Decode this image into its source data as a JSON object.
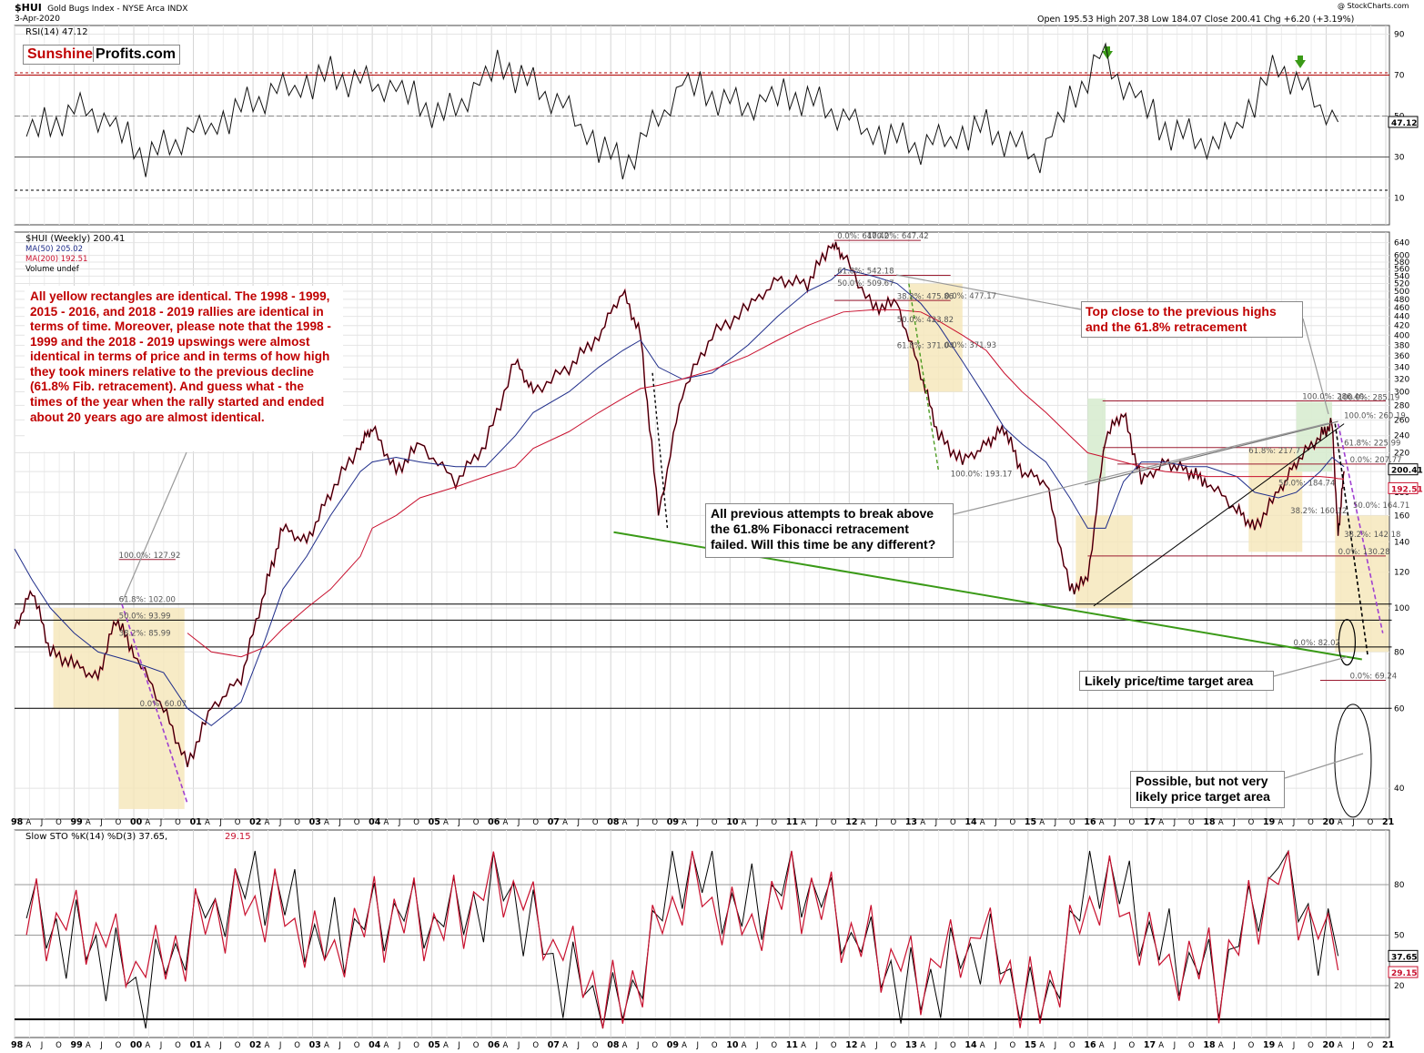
{
  "header": {
    "symbol": "$HUI",
    "name": "Gold Bugs Index - NYSE Arca INDX",
    "date": "3-Apr-2020",
    "ohlc": "Open 195.53  High 207.38  Low 184.07  Close 200.41  Chg +6.20 (+3.19%)",
    "watermark": "@ StockCharts.com"
  },
  "logo": {
    "part1": "Sunshine",
    "part2": "Profits.com"
  },
  "colors": {
    "accent_red": "#c00000",
    "ma50": "#1f2d8a",
    "ma200": "#c8102e",
    "up": "#000000",
    "down": "#c8102e",
    "yellow_box": "#f5e6b8",
    "green_box": "#d8ecd0",
    "trend_green": "#3a9a17"
  },
  "rsi_panel": {
    "label": "RSI(14) 47.12",
    "value_tag": "47.12",
    "ticks": [
      "90",
      "70",
      "50",
      "30",
      "10"
    ],
    "levels": [
      10,
      30,
      50,
      70,
      90
    ]
  },
  "price_panel": {
    "legend": [
      "$HUI (Weekly) 200.41",
      "MA(50) 205.02",
      "MA(200) 192.51",
      "Volume undef"
    ],
    "ticks": [
      "640",
      "600",
      "580",
      "560",
      "540",
      "520",
      "500",
      "480",
      "460",
      "440",
      "420",
      "400",
      "380",
      "360",
      "340",
      "320",
      "300",
      "280",
      "260",
      "240",
      "220",
      "200",
      "180",
      "160",
      "140",
      "120",
      "100",
      "80",
      "60",
      "40"
    ],
    "last_tags": [
      "200.41",
      "192.51"
    ]
  },
  "sto_panel": {
    "label": "Slow STO %K(14) %D(3) 37.65, 29.15",
    "label_part1": "Slow STO %K(14) %D(3) 37.65,",
    "label_part2": "29.15",
    "ticks": [
      "80",
      "50",
      "20"
    ],
    "tags": [
      "37.65",
      "29.15"
    ]
  },
  "x_axis": [
    "98",
    "A",
    "J",
    "O",
    "99",
    "A",
    "J",
    "O",
    "00",
    "A",
    "J",
    "O",
    "01",
    "A",
    "J",
    "O",
    "02",
    "A",
    "J",
    "O",
    "03",
    "A",
    "J",
    "O",
    "04",
    "A",
    "J",
    "O",
    "05",
    "A",
    "J",
    "O",
    "06",
    "A",
    "J",
    "O",
    "07",
    "A",
    "J",
    "O",
    "08",
    "A",
    "J",
    "O",
    "09",
    "A",
    "J",
    "O",
    "10",
    "A",
    "J",
    "O",
    "11",
    "A",
    "J",
    "O",
    "12",
    "A",
    "J",
    "O",
    "13",
    "A",
    "J",
    "O",
    "14",
    "A",
    "J",
    "O",
    "15",
    "A",
    "J",
    "O",
    "16",
    "A",
    "J",
    "O",
    "17",
    "A",
    "J",
    "O",
    "18",
    "A",
    "J",
    "O",
    "19",
    "A",
    "J",
    "O",
    "20",
    "A",
    "J",
    "O",
    "21"
  ],
  "fib_labels": [
    "100.0%: 127.92",
    "61.8%: 102.00",
    "50.0%: 93.99",
    "38.2%: 85.99",
    "0.0%: 60.07",
    "0.0%: 647.42",
    "100.0%: 647.42",
    "61.8%: 542.18",
    "50.0%: 509.67",
    "38.2%: 475.86",
    "0.0%: 477.17",
    "50.0%: 423.82",
    "61.8%: 371.04",
    "0.0%: 371.93",
    "100.0%: 193.17",
    "100.0%: 286.40",
    "100.0%: 285.19",
    "100.0%: 260.19",
    "61.8%: 225.99",
    "0.0%: 207.77",
    "61.8%: 217.7",
    "50.0%: 184.74",
    "50.0%: 164.71",
    "38.2%: 160.12",
    "38.2%: 142.18",
    "0.0%: 130.28",
    "0.0%: 82.02",
    "0.0%: 69.24"
  ],
  "annotations": {
    "main_note": "All yellow rectangles are identical. The 1998 - 1999, 2015 - 2016, and 2018 - 2019 rallies are identical in terms of time. Moreover, please note that the 1998 - 1999 and the 2018 - 2019 upswings were almost identical in terms of price and in terms of how high they took miners relative to the previous decline (61.8% Fib. retracement). And guess what - the times of the year when the rally started and ended about 20 years ago are almost identical.",
    "top_close": "Top close to the previous highs and the 61.8% retracement",
    "fib_attempts": "All previous attempts to break above the 61.8% Fibonacci retracement failed. Will this time be any different?",
    "likely_target": "Likely price/time target area",
    "possible_target": "Possible, but not very likely price target area"
  },
  "chart_data": [
    {
      "type": "line",
      "title": "RSI(14) 47.12",
      "ylim": [
        10,
        90
      ],
      "x": [
        "1998",
        "1999",
        "2000",
        "2001",
        "2002",
        "2003",
        "2004",
        "2005",
        "2006",
        "2007",
        "2008",
        "2009",
        "2010",
        "2011",
        "2012",
        "2013",
        "2014",
        "2015",
        "2016",
        "2017",
        "2018",
        "2019",
        "2020"
      ],
      "series": [
        {
          "name": "RSI(14)",
          "values": [
            40,
            55,
            30,
            45,
            60,
            70,
            65,
            50,
            75,
            55,
            25,
            65,
            55,
            60,
            45,
            35,
            45,
            30,
            80,
            45,
            35,
            75,
            47.12
          ]
        }
      ]
    },
    {
      "type": "line",
      "title": "$HUI Gold Bugs Index (Weekly)",
      "ylim": [
        35,
        660
      ],
      "log_scale": true,
      "x": [
        "1998.0",
        "1998.3",
        "1998.6",
        "1999.0",
        "1999.4",
        "1999.7",
        "2000.0",
        "2000.5",
        "2000.9",
        "2001.3",
        "2001.8",
        "2002.2",
        "2002.5",
        "2002.9",
        "2003.3",
        "2003.8",
        "2004.0",
        "2004.4",
        "2004.8",
        "2005.4",
        "2005.9",
        "2006.4",
        "2006.7",
        "2007.3",
        "2007.8",
        "2008.2",
        "2008.5",
        "2008.8",
        "2009.2",
        "2009.7",
        "2010.3",
        "2010.8",
        "2011.3",
        "2011.7",
        "2011.9",
        "2012.4",
        "2012.8",
        "2013.2",
        "2013.5",
        "2013.9",
        "2014.3",
        "2014.6",
        "2014.9",
        "2015.3",
        "2015.7",
        "2016.0",
        "2016.3",
        "2016.6",
        "2016.9",
        "2017.3",
        "2017.7",
        "2018.0",
        "2018.5",
        "2018.8",
        "2019.2",
        "2019.5",
        "2019.9",
        "2020.1",
        "2020.2",
        "2020.3"
      ],
      "series": [
        {
          "name": "$HUI (Weekly) 200.41",
          "values": [
            90,
            110,
            80,
            75,
            70,
            95,
            80,
            60,
            45,
            60,
            70,
            110,
            150,
            140,
            180,
            230,
            250,
            200,
            230,
            190,
            230,
            350,
            300,
            340,
            400,
            500,
            400,
            160,
            300,
            400,
            460,
            530,
            520,
            640,
            600,
            460,
            470,
            330,
            240,
            210,
            230,
            250,
            200,
            190,
            110,
            115,
            240,
            270,
            190,
            210,
            200,
            190,
            165,
            150,
            180,
            210,
            240,
            255,
            145,
            200.41
          ]
        },
        {
          "name": "MA(50) 205.02",
          "values": [
            135,
            115,
            100,
            88,
            80,
            78,
            76,
            72,
            60,
            55,
            62,
            85,
            110,
            130,
            160,
            200,
            210,
            215,
            210,
            205,
            205,
            240,
            270,
            300,
            340,
            370,
            390,
            340,
            320,
            330,
            380,
            440,
            500,
            530,
            560,
            540,
            520,
            470,
            420,
            350,
            290,
            250,
            230,
            210,
            175,
            150,
            150,
            190,
            210,
            210,
            205,
            205,
            195,
            180,
            175,
            180,
            200,
            215,
            210,
            205.02
          ]
        },
        {
          "name": "MA(200) 192.51",
          "values": [
            null,
            null,
            null,
            null,
            null,
            null,
            null,
            null,
            88,
            80,
            78,
            82,
            90,
            100,
            110,
            130,
            150,
            160,
            175,
            185,
            195,
            205,
            225,
            245,
            270,
            290,
            305,
            310,
            320,
            335,
            360,
            390,
            420,
            440,
            450,
            455,
            455,
            450,
            430,
            400,
            370,
            330,
            300,
            270,
            240,
            220,
            215,
            210,
            205,
            200,
            198,
            195,
            195,
            195,
            195,
            195,
            195,
            194,
            193,
            192.51
          ]
        }
      ]
    },
    {
      "type": "line",
      "title": "Slow STO %K(14) %D(3) 37.65, 29.15",
      "ylim": [
        0,
        100
      ],
      "x": [
        "1998",
        "1999",
        "2000",
        "2001",
        "2002",
        "2003",
        "2004",
        "2005",
        "2006",
        "2007",
        "2008",
        "2009",
        "2010",
        "2011",
        "2012",
        "2013",
        "2014",
        "2015",
        "2016",
        "2017",
        "2018",
        "2019",
        "2020"
      ],
      "series": [
        {
          "name": "%K(14)",
          "values": [
            60,
            50,
            20,
            70,
            80,
            40,
            60,
            55,
            85,
            30,
            10,
            90,
            60,
            80,
            40,
            20,
            50,
            10,
            90,
            40,
            20,
            90,
            37.65
          ]
        },
        {
          "name": "%D(3)",
          "values": [
            55,
            52,
            25,
            65,
            75,
            45,
            58,
            52,
            80,
            35,
            12,
            85,
            60,
            75,
            42,
            22,
            48,
            12,
            85,
            42,
            22,
            85,
            29.15
          ]
        }
      ]
    }
  ]
}
